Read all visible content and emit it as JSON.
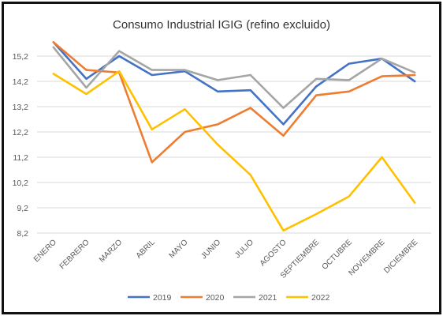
{
  "chart_data": {
    "type": "line",
    "title": "Consumo Industrial IGIG (refino excluido)",
    "xlabel": "",
    "ylabel": "",
    "categories": [
      "ENERO",
      "FEBRERO",
      "MARZO",
      "ABRIL",
      "MAYO",
      "JUNIO",
      "JULIO",
      "AGOSTO",
      "SEPTIEMBRE",
      "OCTUBRE",
      "NOVIEMBRE",
      "DICIEMBRE"
    ],
    "yticks": [
      "15,2",
      "14,2",
      "13,2",
      "12,2",
      "11,2",
      "10,2",
      "9,2",
      "8,2"
    ],
    "ytick_values": [
      15.2,
      14.2,
      13.2,
      12.2,
      11.2,
      10.2,
      9.2,
      8.2
    ],
    "ylim": [
      8.2,
      15.7
    ],
    "grid": true,
    "legend_position": "bottom",
    "series": [
      {
        "name": "2019",
        "color": "#4472C4",
        "values": [
          15.75,
          14.3,
          15.2,
          14.45,
          14.6,
          13.8,
          13.85,
          12.5,
          14.0,
          14.9,
          15.1,
          14.2
        ]
      },
      {
        "name": "2020",
        "color": "#ED7D31",
        "values": [
          15.75,
          14.65,
          14.55,
          11.0,
          12.2,
          12.5,
          13.15,
          12.05,
          13.65,
          13.8,
          14.4,
          14.45
        ]
      },
      {
        "name": "2021",
        "color": "#A5A5A5",
        "values": [
          15.55,
          13.95,
          15.4,
          14.65,
          14.65,
          14.25,
          14.45,
          13.15,
          14.3,
          14.25,
          15.1,
          14.55
        ]
      },
      {
        "name": "2022",
        "color": "#FFC000",
        "values": [
          14.5,
          13.7,
          14.6,
          12.3,
          13.1,
          11.7,
          10.5,
          8.3,
          8.95,
          9.65,
          11.2,
          9.4
        ]
      }
    ]
  }
}
